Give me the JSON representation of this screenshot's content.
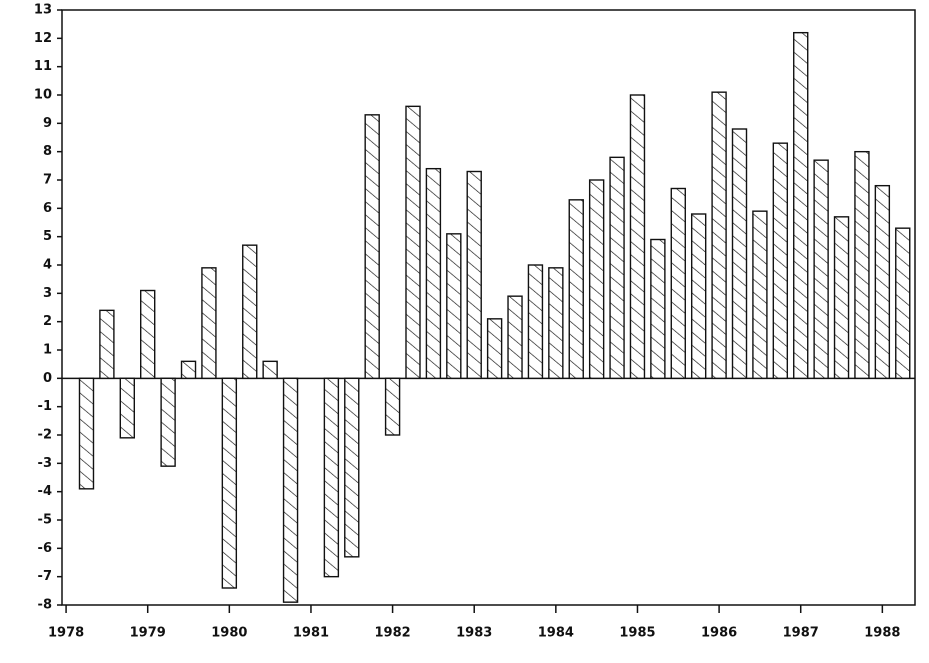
{
  "chart_data": {
    "type": "bar",
    "color": "#111111",
    "x": [
      1978.25,
      1978.5,
      1978.75,
      1979,
      1979.25,
      1979.5,
      1979.75,
      1980,
      1980.25,
      1980.5,
      1980.75,
      1981,
      1981.25,
      1981.5,
      1981.75,
      1982,
      1982.25,
      1982.5,
      1982.75,
      1983,
      1983.25,
      1983.5,
      1983.75,
      1984,
      1984.25,
      1984.5,
      1984.75,
      1985,
      1985.25,
      1985.5,
      1985.75,
      1986,
      1986.25,
      1986.5,
      1986.75,
      1987,
      1987.25,
      1987.5,
      1987.75,
      1988,
      1988.25
    ],
    "values": [
      -3.9,
      2.4,
      -2.1,
      3.1,
      -3.1,
      0.6,
      3.9,
      -7.4,
      4.7,
      0.6,
      -7.9,
      null,
      -7.0,
      -6.3,
      9.3,
      -2.0,
      9.6,
      7.4,
      5.1,
      7.3,
      2.1,
      2.9,
      4.0,
      3.9,
      6.3,
      7.0,
      7.8,
      10.0,
      4.9,
      6.7,
      5.8,
      10.1,
      8.8,
      5.9,
      8.3,
      12.2,
      7.7,
      5.7,
      8.0,
      6.8,
      5.3
    ],
    "xlim": [
      1977.95,
      1988.4
    ],
    "xticks": [
      1978,
      1979,
      1980,
      1981,
      1982,
      1983,
      1984,
      1985,
      1986,
      1987,
      1988
    ],
    "ylim": [
      -8,
      13
    ],
    "yticks": [
      -8,
      -7,
      -6,
      -5,
      -4,
      -3,
      -2,
      -1,
      0,
      1,
      2,
      3,
      4,
      5,
      6,
      7,
      8,
      9,
      10,
      11,
      12,
      13
    ]
  }
}
